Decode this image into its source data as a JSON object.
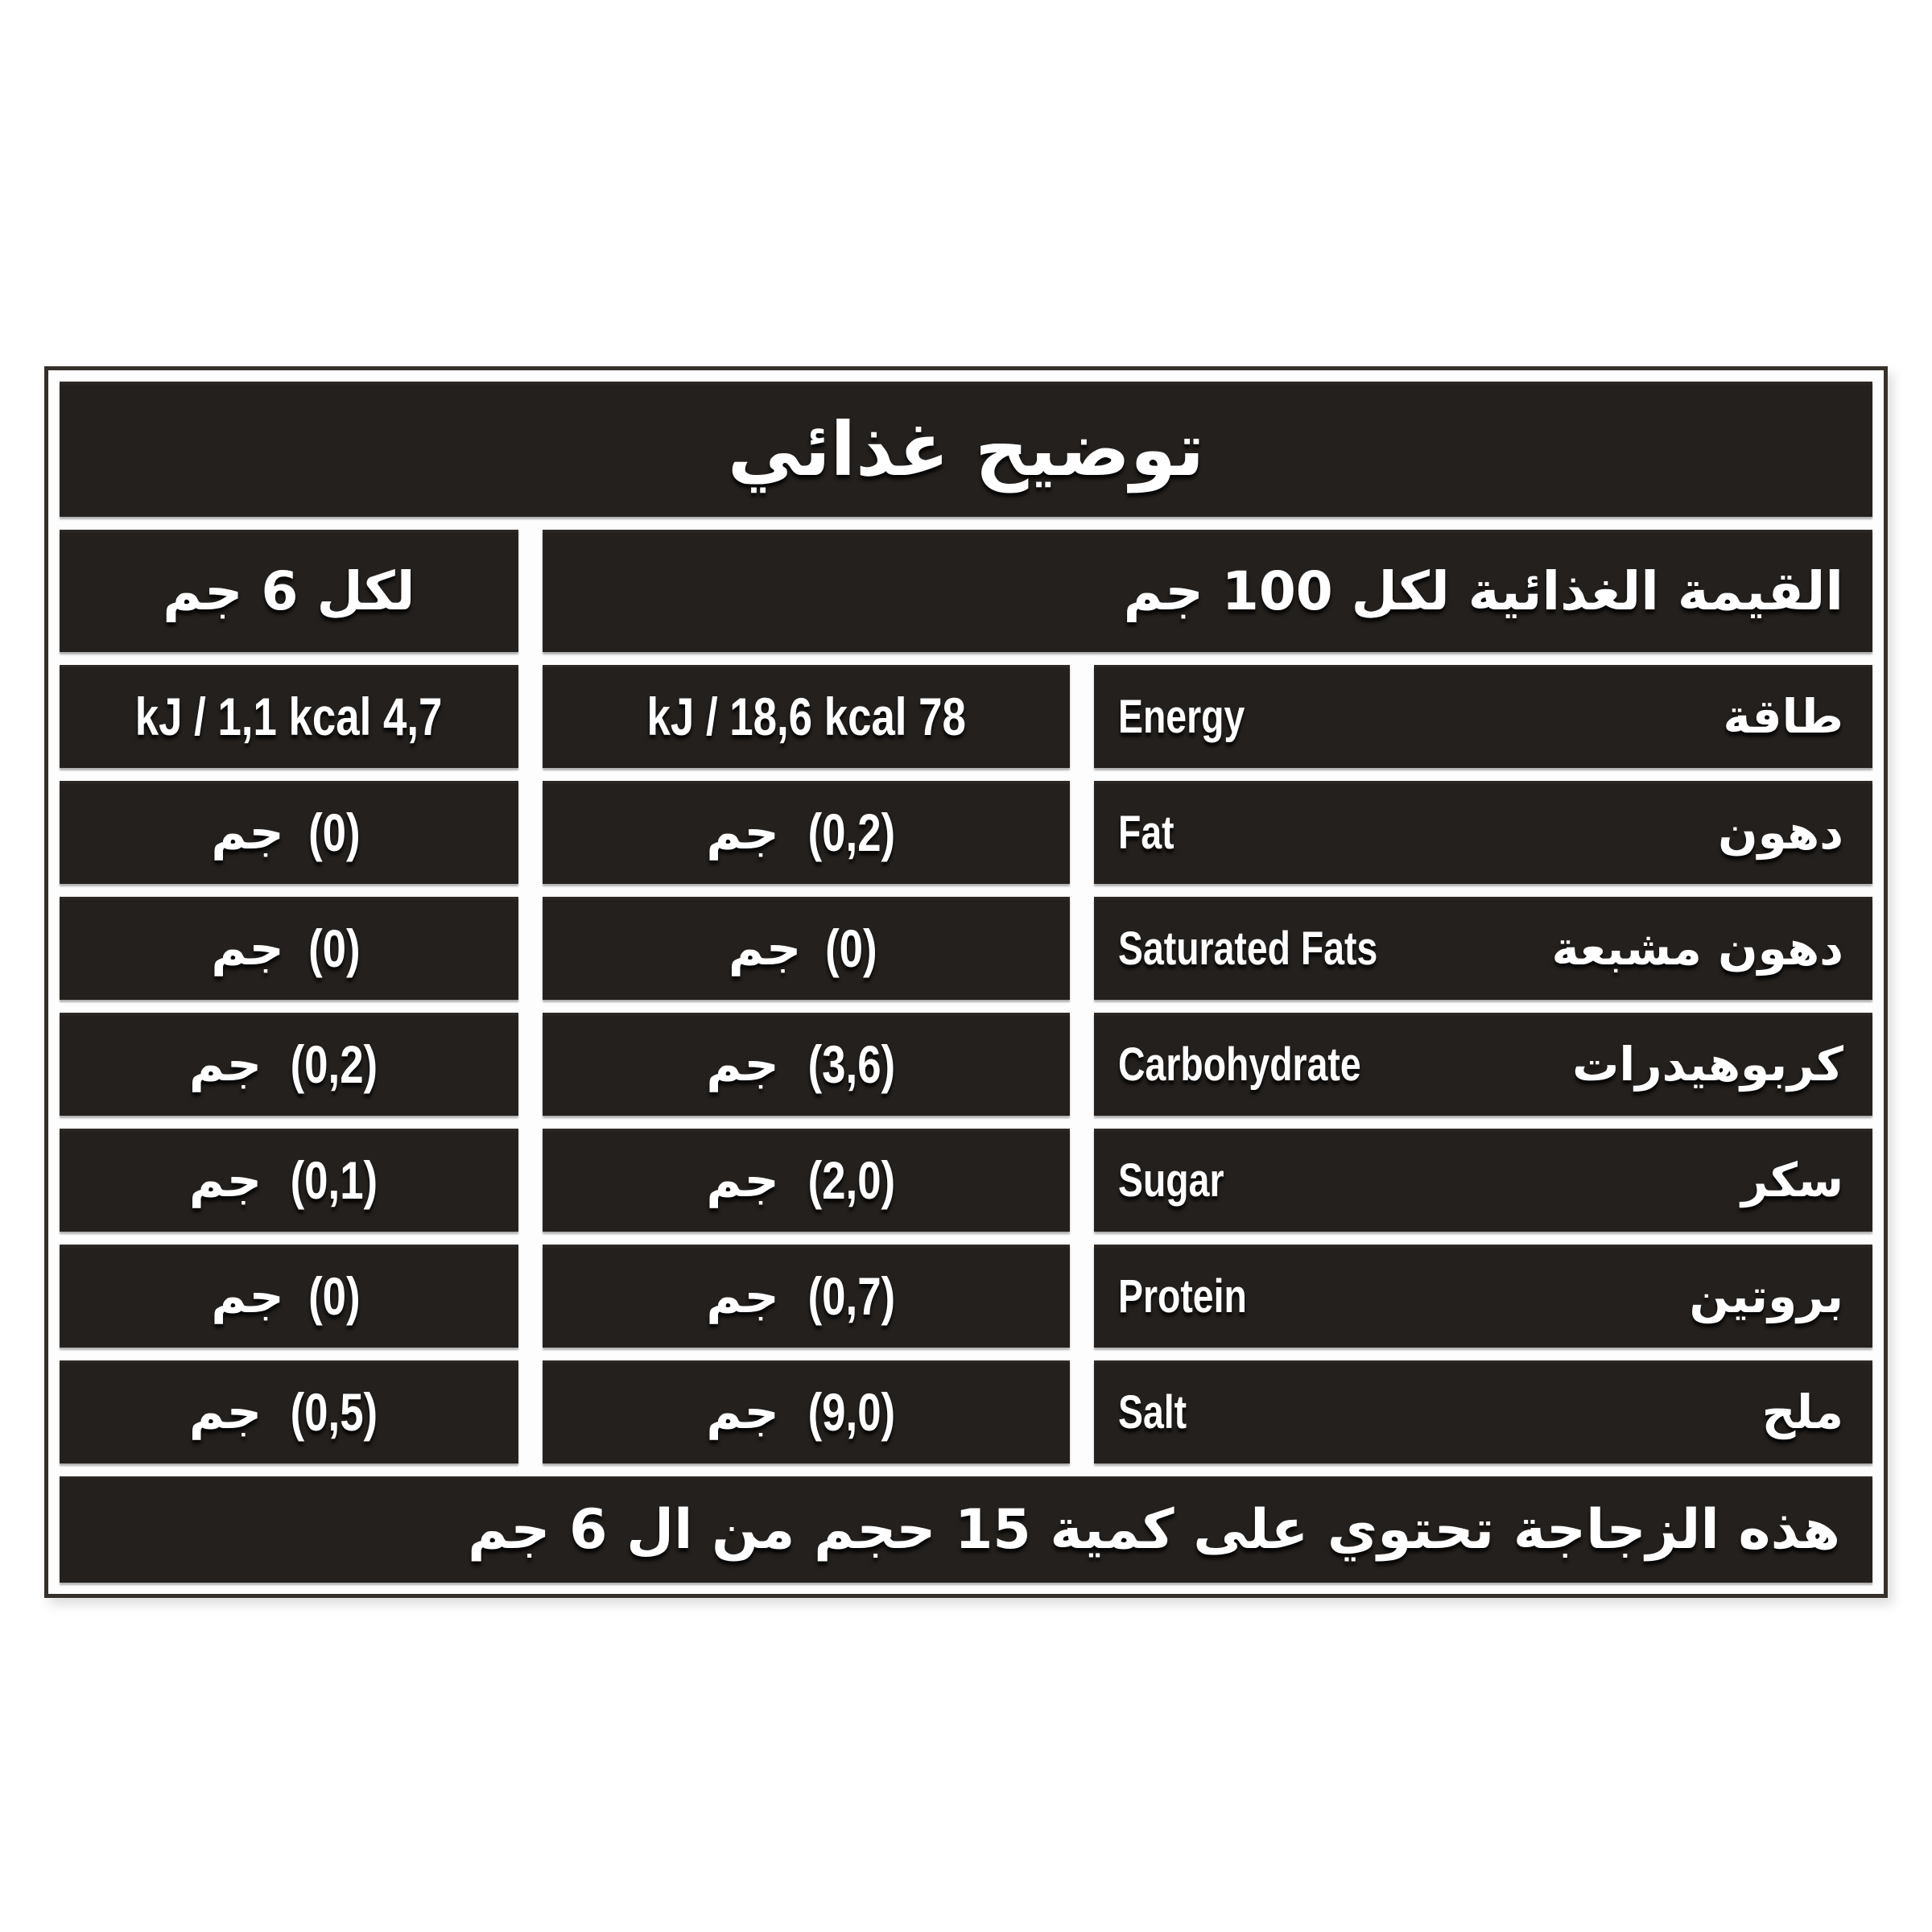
{
  "title": "توضيح غذائي",
  "header": {
    "per_100g_label": "القيمة الغذائية لكل 100 جم",
    "per_6g_label": "لكل 6 جم"
  },
  "rows": [
    {
      "name_en": "Energy",
      "name_ar": "طاقة",
      "per100": "78 kJ / 18,6 kcal",
      "per6": "4,7 kJ / 1,1 kcal",
      "unit_ar": ""
    },
    {
      "name_en": "Fat",
      "name_ar": "دهون",
      "per100": "(0,2)",
      "per6": "(0)",
      "unit_ar": "جم"
    },
    {
      "name_en": "Saturated Fats",
      "name_ar": "دهون مشبعة",
      "per100": "(0)",
      "per6": "(0)",
      "unit_ar": "جم"
    },
    {
      "name_en": "Carbohydrate",
      "name_ar": "كربوهيدرات",
      "per100": "(3,6)",
      "per6": "(0,2)",
      "unit_ar": "جم"
    },
    {
      "name_en": "Sugar",
      "name_ar": "سكر",
      "per100": "(2,0)",
      "per6": "(0,1)",
      "unit_ar": "جم"
    },
    {
      "name_en": "Protein",
      "name_ar": "بروتين",
      "per100": "(0,7)",
      "per6": "(0)",
      "unit_ar": "جم"
    },
    {
      "name_en": "Salt",
      "name_ar": "ملح",
      "per100": "(9,0)",
      "per6": "(0,5)",
      "unit_ar": "جم"
    }
  ],
  "footer": "هذه الزجاجة تحتوي على كمية 15 حجم من ال 6 جم",
  "colors": {
    "cell_bg": "#24201d",
    "frame_border": "#35302b",
    "page_bg": "#ffffff",
    "text": "#ffffff"
  }
}
